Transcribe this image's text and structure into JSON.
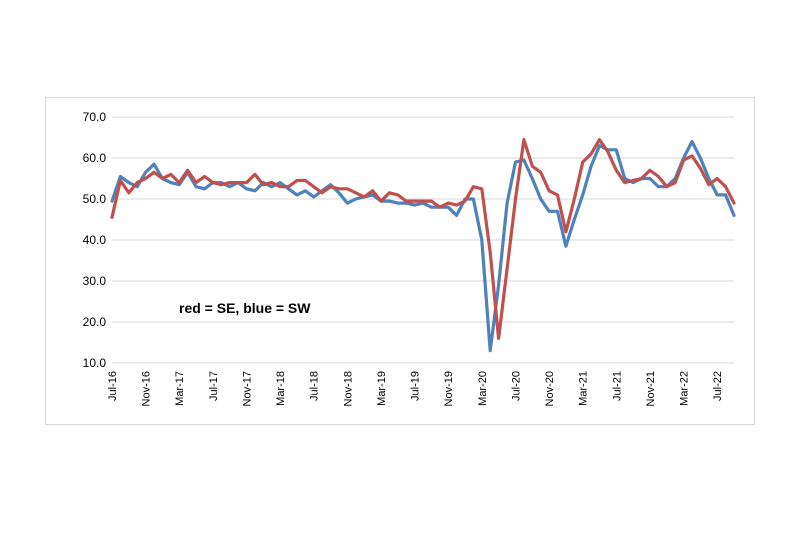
{
  "chart_data": {
    "type": "line",
    "annotation": "red = SE, blue = SW",
    "ylim": [
      10,
      70
    ],
    "yticks": [
      "10.0",
      "20.0",
      "30.0",
      "40.0",
      "50.0",
      "60.0",
      "70.0"
    ],
    "grid": true,
    "x_start": "Jul-16",
    "tick_labels": [
      "Jul-16",
      "Nov-16",
      "Mar-17",
      "Jul-17",
      "Nov-17",
      "Mar-18",
      "Jul-18",
      "Nov-18",
      "Mar-19",
      "Jul-19",
      "Nov-19",
      "Mar-20",
      "Jul-20",
      "Nov-20",
      "Mar-21",
      "Jul-21",
      "Nov-21",
      "Mar-22",
      "Jul-22"
    ],
    "colors": {
      "SE": "#c0504d",
      "SW": "#4f81bd"
    },
    "series": [
      {
        "name": "SE",
        "color": "#c0504d",
        "values": [
          45.5,
          54.5,
          51.5,
          54,
          55,
          56.5,
          55,
          56,
          54,
          57,
          54,
          55.5,
          54,
          53.5,
          54,
          54,
          54,
          56,
          53.5,
          54,
          53,
          53,
          54.5,
          54.5,
          53,
          51.5,
          53,
          52.5,
          52.5,
          51.5,
          50.5,
          52,
          49.5,
          51.5,
          51,
          49.5,
          49.5,
          49.5,
          49.5,
          48,
          49,
          48.5,
          49.5,
          53,
          52.5,
          37,
          16,
          33,
          50,
          64.5,
          58,
          56.5,
          52,
          51,
          42,
          50,
          59,
          61,
          64.5,
          61.5,
          57,
          54,
          54.5,
          55,
          57,
          55.5,
          53,
          54,
          59.5,
          60.5,
          57.5,
          53.5,
          55,
          53,
          49
        ]
      },
      {
        "name": "SW",
        "color": "#4f81bd",
        "values": [
          49.5,
          55.5,
          54,
          53,
          56.5,
          58.5,
          55,
          54,
          53.5,
          56.5,
          53,
          52.5,
          54,
          54,
          53,
          54,
          52.5,
          52,
          54,
          53,
          54,
          52.5,
          51,
          52,
          50.5,
          52,
          53.5,
          51.5,
          49,
          50,
          50.5,
          51,
          49.5,
          49.5,
          49,
          49,
          48.5,
          49,
          48,
          48,
          48,
          46,
          50,
          50,
          40,
          13,
          29,
          49,
          59,
          59.5,
          55,
          50,
          47,
          47,
          38.5,
          45,
          51,
          58,
          63,
          62,
          62,
          55,
          54,
          55,
          55,
          53,
          53,
          55,
          60,
          64,
          60,
          55,
          51,
          51,
          46
        ]
      }
    ]
  }
}
